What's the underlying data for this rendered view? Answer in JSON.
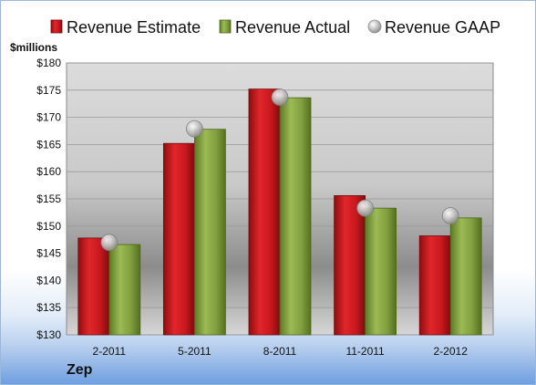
{
  "chart_data": {
    "type": "bar",
    "ylabel": "$millions",
    "ylim": [
      130,
      180
    ],
    "ytick_step": 5,
    "yticks": [
      "$130",
      "$135",
      "$140",
      "$145",
      "$150",
      "$155",
      "$160",
      "$165",
      "$170",
      "$175",
      "$180"
    ],
    "categories": [
      "2-2011",
      "5-2011",
      "8-2011",
      "11-2011",
      "2-2012"
    ],
    "series": [
      {
        "name": "Revenue Estimate",
        "kind": "bar",
        "color": "#c8191e",
        "values": [
          147.8,
          165.2,
          175.2,
          155.6,
          148.2
        ]
      },
      {
        "name": "Revenue Actual",
        "kind": "bar",
        "color": "#7e9c3c",
        "values": [
          146.6,
          167.8,
          173.6,
          153.3,
          151.5
        ]
      },
      {
        "name": "Revenue GAAP",
        "kind": "marker",
        "color": "#a9a9a9",
        "values": [
          147.0,
          167.9,
          173.7,
          153.3,
          151.9
        ]
      }
    ],
    "grid": true,
    "legend": "top"
  },
  "footer": {
    "company": "Zep"
  }
}
